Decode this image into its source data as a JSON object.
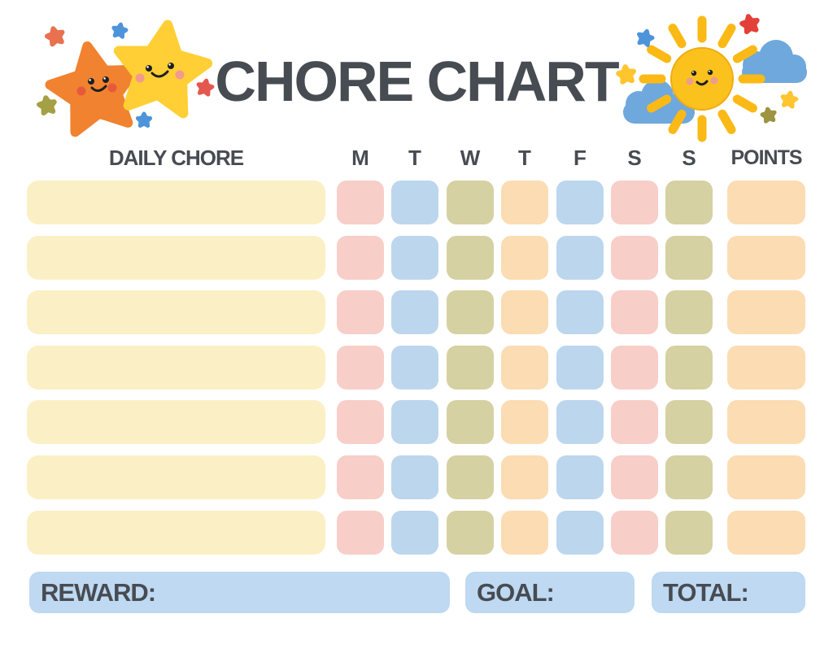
{
  "page": {
    "title": "CHORE CHART",
    "background_color": "#ffffff",
    "text_color": "#474c52"
  },
  "table": {
    "chore_column_header": "DAILY CHORE",
    "day_headers": [
      "M",
      "T",
      "W",
      "T",
      "F",
      "S",
      "S"
    ],
    "points_header": "POINTS",
    "row_count": 7,
    "chore_names": [
      "",
      "",
      "",
      "",
      "",
      "",
      ""
    ],
    "chore_cell_color": "#fbf0c5",
    "day_cell_colors": [
      "#f8cec8",
      "#bcd6ee",
      "#d5d1a2",
      "#fbdcb3",
      "#bcd6ee",
      "#f8cec8",
      "#d5d1a2"
    ],
    "points_cell_color": "#fbdcb3"
  },
  "footer": {
    "reward_label": "REWARD:",
    "goal_label": "GOAL:",
    "total_label": "TOTAL:",
    "reward_value": "",
    "goal_value": "",
    "total_value": "",
    "box_color": "#bed9f1"
  },
  "decorations": {
    "left": {
      "orange_star_color": "#f08230",
      "orange_star_cheek": "#e8593b",
      "yellow_star_color": "#ffcf35",
      "yellow_star_cheek": "#f29a8f",
      "small_star_colors": {
        "coral": "#e87150",
        "blue": "#4e94db",
        "olive": "#a59f45",
        "red": "#e5574e"
      }
    },
    "right": {
      "sun_color": "#fbc21e",
      "sun_rim": "#f0ac12",
      "ray_color": "#fbb916",
      "sun_cheek": "#ec9c90",
      "cloud_color": "#6fa8dc",
      "small_star_colors": {
        "blue": "#4e94db",
        "red": "#e4403a",
        "yellow": "#ffc52e",
        "olive": "#9c9440"
      }
    },
    "face_color": "#1f1f1f"
  }
}
